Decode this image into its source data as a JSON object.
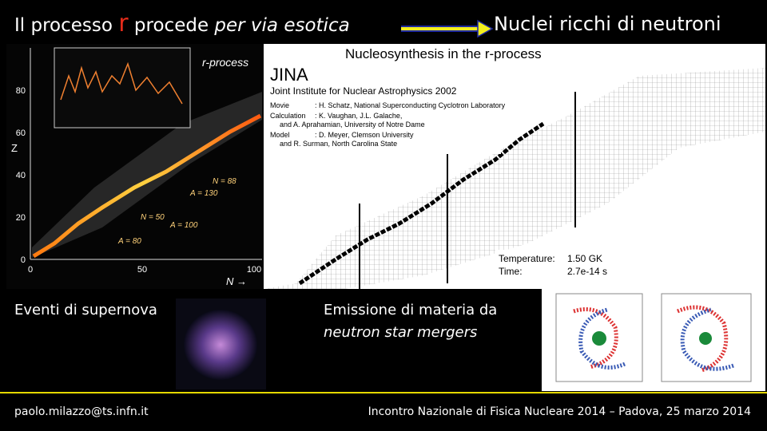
{
  "title": {
    "part1": "Il processo",
    "r": "r",
    "part2": "procede",
    "part3": "per via esotica"
  },
  "arrow_target": "Nuclei ricchi di neutroni",
  "left_figure": {
    "inset_label": "r-process",
    "y_axis": "Z",
    "x_axis": "N →",
    "yticks": [
      "0",
      "20",
      "40",
      "60",
      "80"
    ],
    "xticks": [
      "0",
      "50",
      "100"
    ],
    "annotations": [
      "N = 88",
      "N = 50",
      "A = 130",
      "A = 100",
      "A = 80"
    ]
  },
  "right_figure": {
    "title": "Nucleosynthesis in the r-process",
    "logo": "JINA",
    "institute": "Joint Institute for Nuclear Astrophysics 2002",
    "credits": [
      {
        "label": "Movie",
        "lines": [
          ": H. Schatz, National Superconducting Cyclotron Laboratory"
        ]
      },
      {
        "label": "Calculation",
        "lines": [
          ": K. Vaughan, J.L. Galache,",
          "and A. Aprahamian, University of Notre Dame"
        ]
      },
      {
        "label": "Model",
        "lines": [
          ": D. Meyer, Clemson University",
          "and R. Surman, North Carolina State"
        ]
      }
    ],
    "temperature_label": "Temperature:",
    "temperature": "1.50 GK",
    "time_label": "Time:",
    "time": "2.7e-14 s"
  },
  "supernova_caption": "Eventi di supernova",
  "merger_caption": {
    "line1": "Emissione di materia da",
    "line2": "neutron star mergers"
  },
  "footer": {
    "email": "paolo.milazzo@ts.infn.it",
    "event": "Incontro Nazionale di Fisica Nucleare 2014 – Padova, 25 marzo 2014"
  }
}
